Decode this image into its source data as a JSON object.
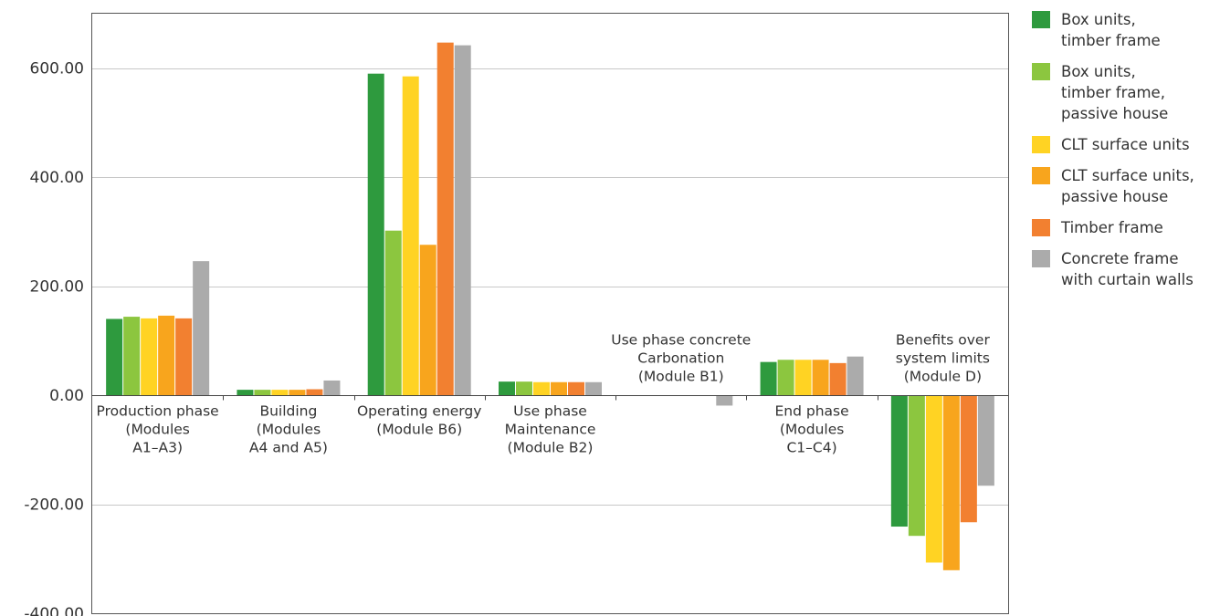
{
  "chart_data": {
    "type": "bar",
    "ylim": [
      -400,
      700
    ],
    "yticks": [
      -400,
      -200,
      0,
      200,
      400,
      600
    ],
    "ytick_labels": [
      "-400.00",
      "-200.00",
      "0.00",
      "200.00",
      "400.00",
      "600.00"
    ],
    "grid": true,
    "legend_position": "right",
    "categories": [
      "Production phase\n(Modules\nA1–A3)",
      "Building\n(Modules\nA4 and A5)",
      "Operating energy\n(Module B6)",
      "Use phase\nMaintenance\n(Module B2)",
      "Use phase concrete\nCarbonation\n(Module B1)",
      "End phase\n(Modules\nC1–C4)",
      "Benefits over\nsystem limits\n(Module D)"
    ],
    "series": [
      {
        "name": "Box units,\ntimber frame",
        "color": "#2e9a3e",
        "values": [
          140,
          10,
          590,
          25,
          0,
          61,
          -241
        ]
      },
      {
        "name": "Box units,\ntimber frame,\npassive house",
        "color": "#8cc63f",
        "values": [
          144,
          10,
          302,
          25,
          0,
          65,
          -258
        ]
      },
      {
        "name": "CLT surface units",
        "color": "#ffd323",
        "values": [
          141,
          10,
          585,
          24,
          0,
          65,
          -307
        ]
      },
      {
        "name": "CLT surface units,\npassive house",
        "color": "#f8a51d",
        "values": [
          146,
          10,
          276,
          24,
          0,
          65,
          -321
        ]
      },
      {
        "name": "Timber frame",
        "color": "#f28030",
        "values": [
          141,
          11,
          647,
          24,
          0,
          59,
          -233
        ]
      },
      {
        "name": "Concrete frame\nwith curtain walls",
        "color": "#ababab",
        "values": [
          246,
          27,
          642,
          24,
          -19,
          71,
          -166
        ]
      }
    ]
  }
}
